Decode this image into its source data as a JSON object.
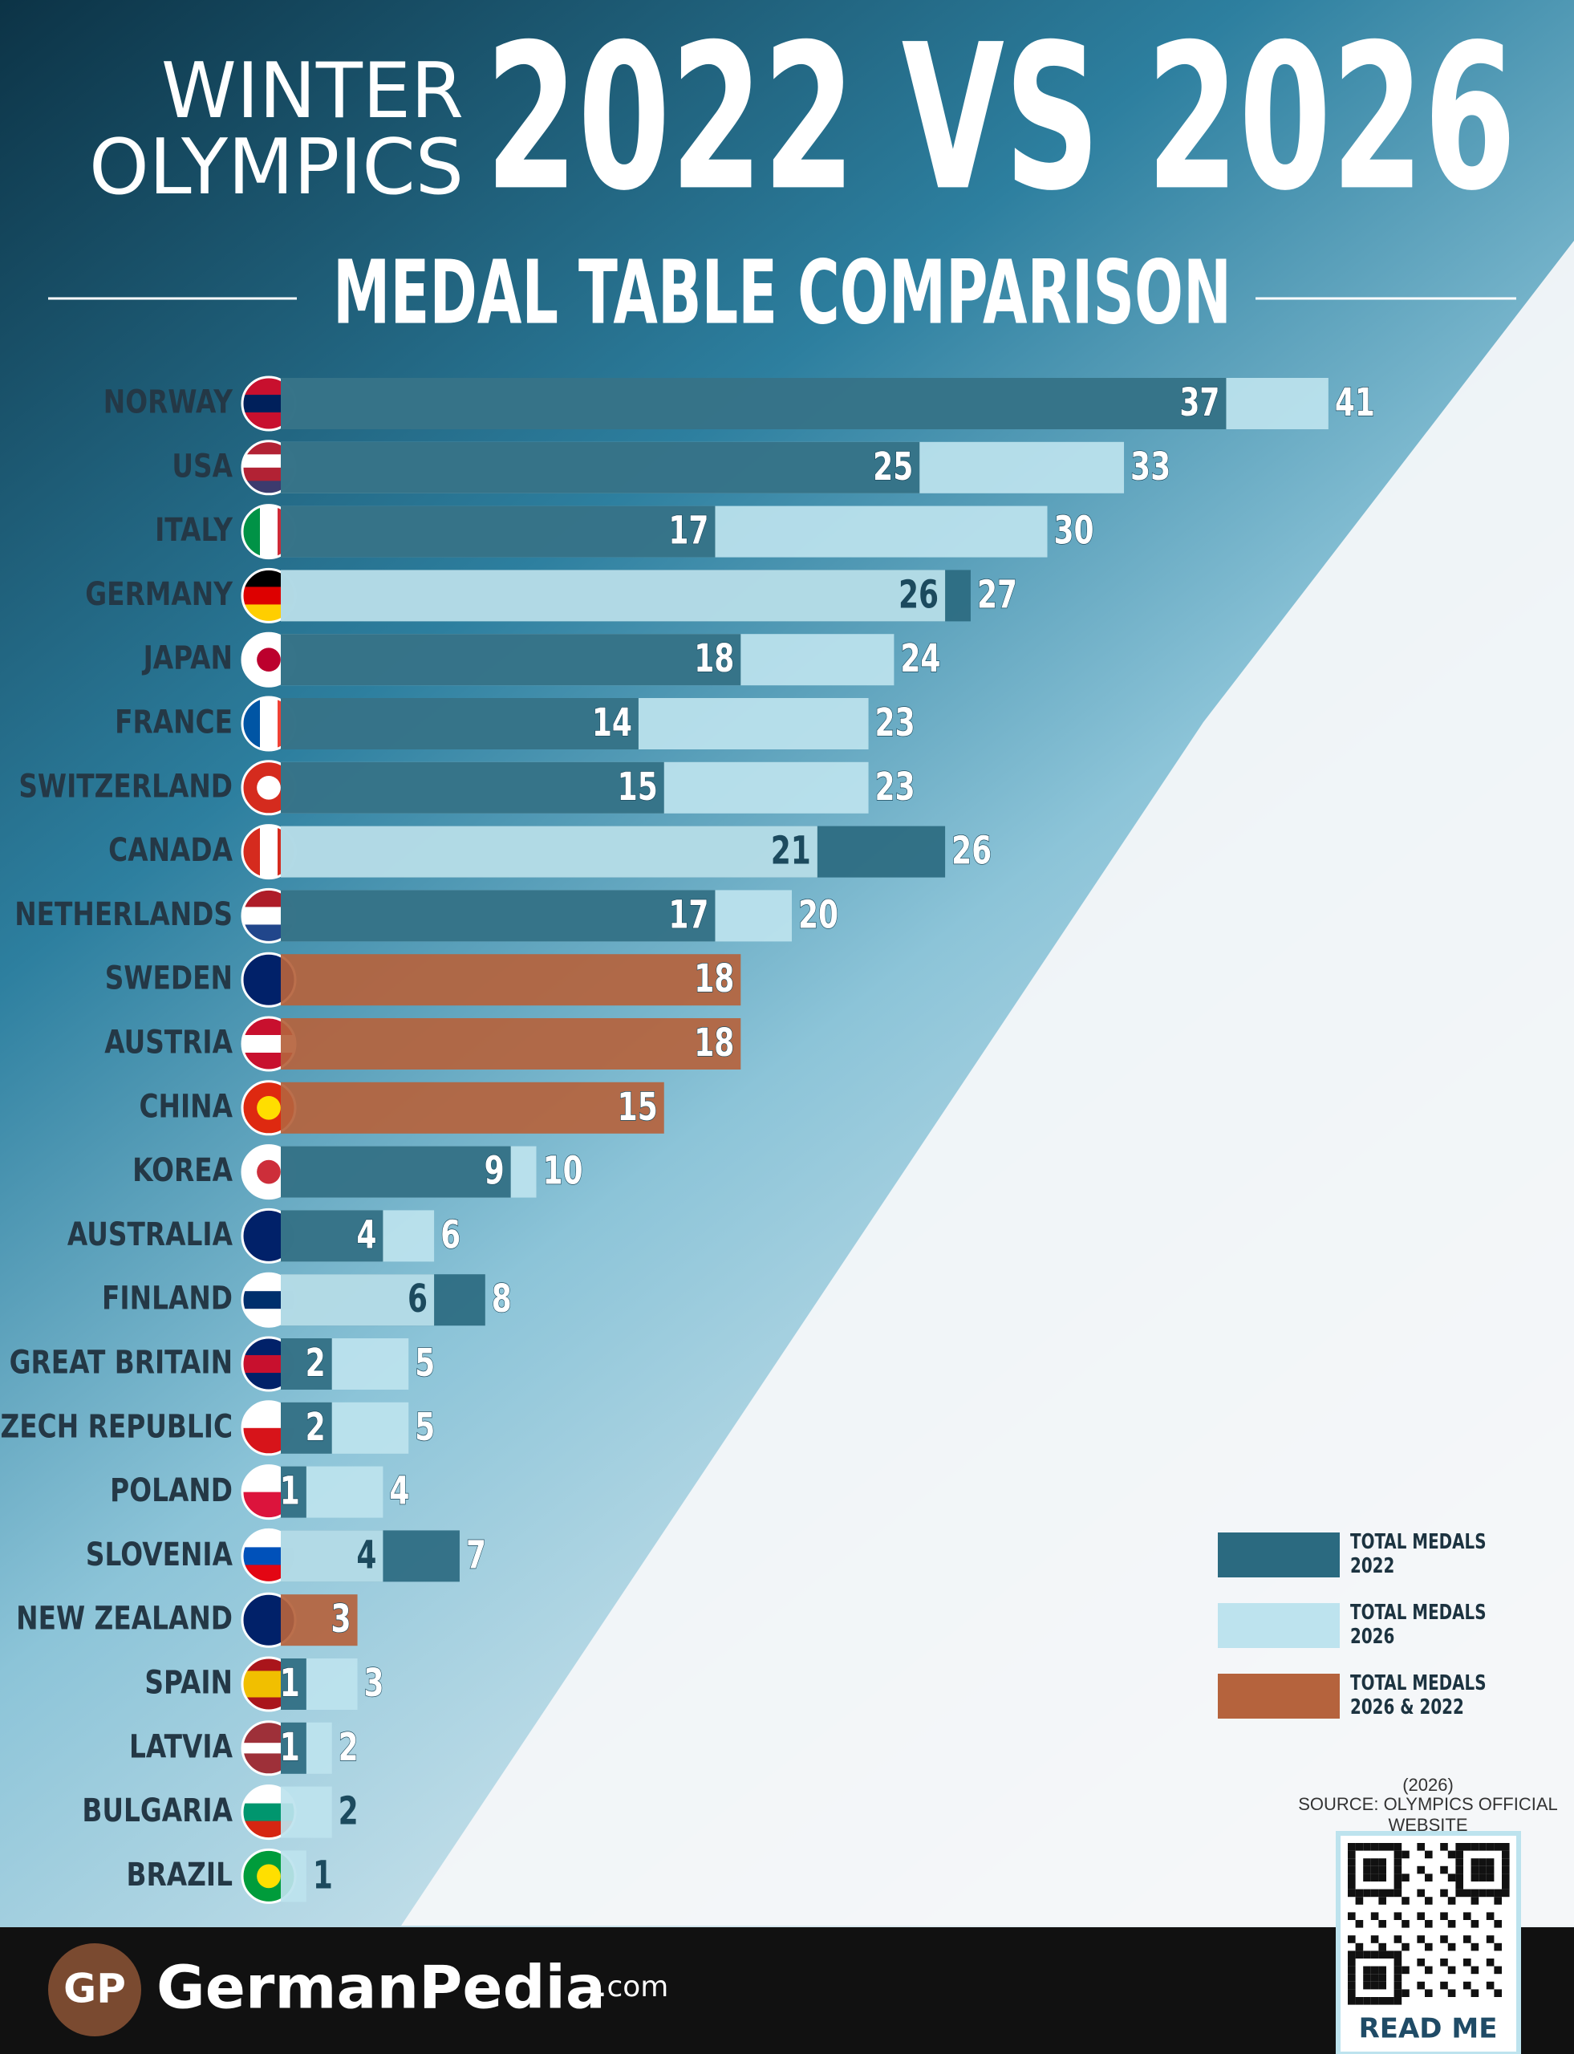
{
  "chart_data": {
    "type": "bar",
    "title_line1": "WINTER",
    "title_line2": "OLYMPICS",
    "title": "2022 VS 2026",
    "subtitle": "MEDAL TABLE COMPARISON",
    "categories": [
      "NORWAY",
      "USA",
      "ITALY",
      "GERMANY",
      "JAPAN",
      "FRANCE",
      "SWITZERLAND",
      "CANADA",
      "NETHERLANDS",
      "SWEDEN",
      "AUSTRIA",
      "CHINA",
      "KOREA",
      "AUSTRALIA",
      "FINLAND",
      "GREAT BRITAIN",
      "CZECH REPUBLIC",
      "POLAND",
      "SLOVENIA",
      "NEW ZEALAND",
      "SPAIN",
      "LATVIA",
      "BULGARIA",
      "BRAZIL"
    ],
    "series": [
      {
        "name": "TOTAL MEDALS 2022",
        "color": "#2b6a80",
        "values": [
          37,
          25,
          17,
          27,
          18,
          14,
          15,
          26,
          17,
          18,
          18,
          15,
          9,
          4,
          8,
          2,
          2,
          1,
          7,
          3,
          1,
          1,
          null,
          null
        ]
      },
      {
        "name": "TOTAL MEDALS 2026",
        "color": "#bde3ee",
        "values": [
          41,
          33,
          30,
          26,
          24,
          23,
          23,
          21,
          20,
          18,
          18,
          15,
          10,
          6,
          6,
          5,
          5,
          4,
          4,
          3,
          3,
          2,
          2,
          1
        ]
      }
    ],
    "equal": {
      "name": "TOTAL MEDALS 2026 & 2022",
      "color": "#b5633d"
    },
    "source_year": "(2026)",
    "source": "SOURCE: OLYMPICS OFFICIAL WEBSITE"
  },
  "footer": {
    "logo": "GP",
    "brand": "GermanPedia",
    "domain": ".com",
    "qr_label": "READ ME"
  }
}
